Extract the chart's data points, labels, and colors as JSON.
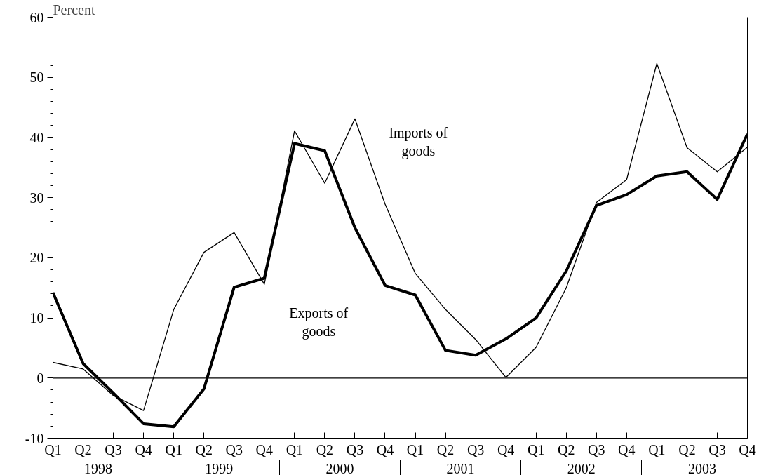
{
  "chart_data": {
    "type": "line",
    "ylabel": "Percent",
    "categories": [
      "Q1",
      "Q2",
      "Q3",
      "Q4",
      "Q1",
      "Q2",
      "Q3",
      "Q4",
      "Q1",
      "Q2",
      "Q3",
      "Q4",
      "Q1",
      "Q2",
      "Q3",
      "Q4",
      "Q1",
      "Q2",
      "Q3",
      "Q4",
      "Q1",
      "Q2",
      "Q3",
      "Q4"
    ],
    "annotations": [
      "1998",
      "1999",
      "2000",
      "2001",
      "2002",
      "2003"
    ],
    "series": [
      {
        "name": "Imports of goods",
        "color": "#000000",
        "values": [
          2.6,
          1.5,
          -2.9,
          -5.4,
          11.4,
          20.9,
          24.2,
          15.6,
          41.1,
          32.4,
          43.1,
          28.9,
          17.4,
          11.4,
          6.4,
          0.1,
          5.1,
          15.0,
          29.2,
          33.0,
          52.3,
          38.3,
          34.3,
          38.4
        ]
      },
      {
        "name": "Exports of goods",
        "color": "#000000",
        "values": [
          14.2,
          2.4,
          -2.5,
          -7.6,
          -8.1,
          -1.8,
          15.1,
          16.6,
          39.0,
          37.8,
          25.0,
          15.4,
          13.8,
          4.6,
          3.8,
          6.5,
          10.0,
          17.8,
          28.7,
          30.5,
          33.6,
          34.3,
          29.7,
          40.6
        ]
      }
    ],
    "ylim": [
      -10,
      60
    ],
    "yticks": [
      -10,
      0,
      10,
      20,
      30,
      40,
      50,
      60
    ],
    "ref_lines": [
      {
        "axis": "y",
        "value": 0,
        "color": "#000000"
      }
    ],
    "grid": false,
    "marker": "none",
    "line_style": "solid"
  }
}
